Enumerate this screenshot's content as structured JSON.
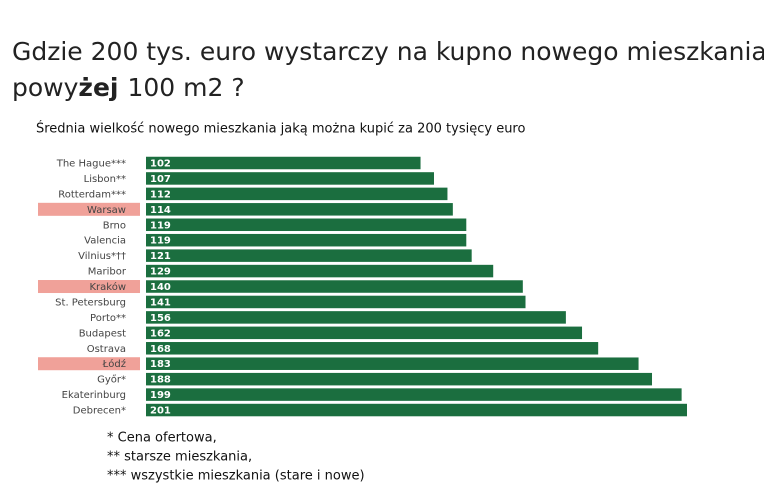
{
  "chart_data": {
    "type": "bar",
    "orientation": "horizontal",
    "title": [
      "Gdzie 200 tys. euro wystarczy na kupno nowego mieszkania",
      "powy",
      "żej",
      "100 m2 ?"
    ],
    "subtitle": "Średnia wielkość nowego mieszkania jaką można kupić za 200 tysięcy euro",
    "categories": [
      "The Hague***",
      "Lisbon**",
      "Rotterdam***",
      "Warsaw",
      "Brno",
      "Valencia",
      "Vilnius*††",
      "Maribor",
      "Kraków",
      "St. Petersburg",
      "Porto**",
      "Budapest",
      "Ostrava",
      "Łódź",
      "Győr*",
      "Ekaterinburg",
      "Debrecen*"
    ],
    "values": [
      102,
      107,
      112,
      114,
      119,
      119,
      121,
      129,
      140,
      141,
      156,
      162,
      168,
      183,
      188,
      199,
      201
    ],
    "color": "#1b6e3f",
    "highlight": [
      "Warsaw",
      "Kraków",
      "Łódź"
    ],
    "highlight_color": "#f0a199",
    "notes": [
      "* Cena ofertowa,",
      "** starsze mieszkania,",
      "*** wszystkie mieszkania (stare i nowe)"
    ]
  }
}
